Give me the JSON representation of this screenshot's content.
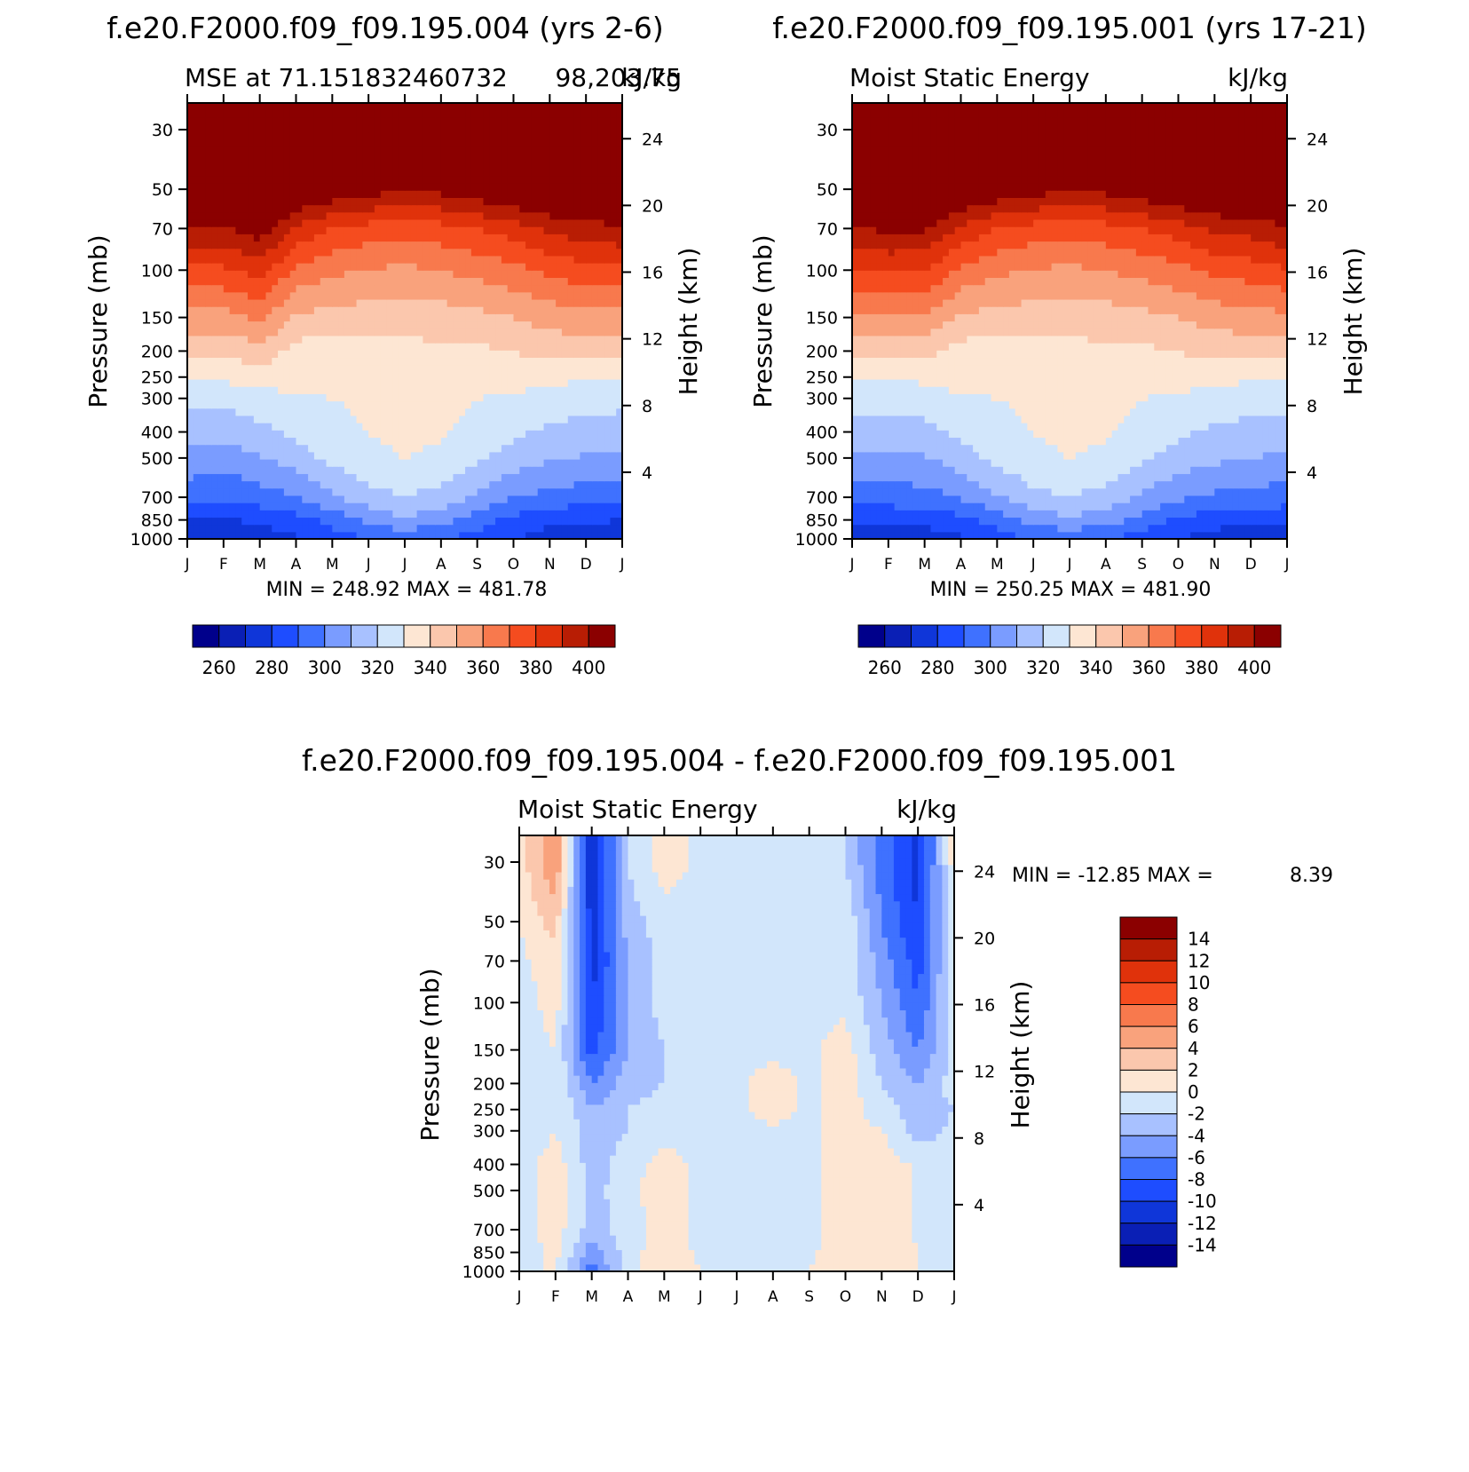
{
  "chart_data": [
    {
      "type": "heatmap",
      "id": "panel-a",
      "title": "f.e20.F2000.f09_f09.195.004 (yrs 2-6)",
      "subtitle_left": "MSE at 71.151832460732",
      "subtitle_right": "98,203.75",
      "units": "kJ/kg",
      "ylabel": "Pressure (mb)",
      "y2label": "Height (km)",
      "months": [
        "J",
        "F",
        "M",
        "A",
        "M",
        "J",
        "J",
        "A",
        "S",
        "O",
        "N",
        "D",
        "J"
      ],
      "pressure_ticks": [
        "30",
        "50",
        "70",
        "100",
        "150",
        "200",
        "250",
        "300",
        "400",
        "500",
        "700",
        "850",
        "1000"
      ],
      "height_ticks": [
        "24",
        "20",
        "16",
        "12",
        "8",
        "4"
      ],
      "stats": "MIN = 248.92  MAX = 481.78",
      "colorbar_labels": [
        "260",
        "280",
        "300",
        "320",
        "340",
        "360",
        "380",
        "400"
      ],
      "contour_levels": [
        250,
        260,
        270,
        280,
        290,
        300,
        310,
        320,
        330,
        340,
        350,
        360,
        370,
        380,
        390,
        400
      ],
      "contour_bands": {
        "levels": [
          1000,
          850,
          700,
          500,
          400,
          300,
          250,
          200,
          150,
          100,
          70,
          50
        ],
        "note": "approximate MSE (kJ/kg) by month (J..J) and pressure level",
        "values": [
          [
            262,
            262,
            264,
            268,
            275,
            280,
            282,
            280,
            275,
            270,
            265,
            263,
            262
          ],
          [
            270,
            268,
            272,
            276,
            283,
            292,
            298,
            294,
            285,
            277,
            272,
            271,
            270
          ],
          [
            283,
            281,
            285,
            290,
            298,
            306,
            310,
            306,
            298,
            290,
            287,
            284,
            283
          ],
          [
            297,
            295,
            299,
            305,
            313,
            318,
            320,
            318,
            312,
            305,
            301,
            299,
            297
          ],
          [
            305,
            303,
            307,
            312,
            317,
            320,
            322,
            321,
            317,
            312,
            308,
            306,
            305
          ],
          [
            313,
            313,
            316,
            318,
            320,
            322,
            324,
            323,
            320,
            318,
            316,
            314,
            313
          ],
          [
            320,
            322,
            324,
            325,
            327,
            328,
            329,
            328,
            327,
            325,
            323,
            321,
            320
          ],
          [
            332,
            332,
            336,
            326,
            325,
            326,
            327,
            328,
            328,
            330,
            333,
            335,
            332
          ],
          [
            346,
            346,
            352,
            338,
            336,
            335,
            334,
            335,
            337,
            340,
            344,
            347,
            346
          ],
          [
            368,
            368,
            374,
            358,
            352,
            349,
            348,
            350,
            353,
            357,
            362,
            366,
            368
          ],
          [
            388,
            388,
            396,
            378,
            370,
            366,
            364,
            366,
            370,
            375,
            382,
            386,
            388
          ],
          [
            405,
            402,
            412,
            404,
            398,
            394,
            392,
            393,
            398,
            402,
            406,
            410,
            405
          ]
        ]
      }
    },
    {
      "type": "heatmap",
      "id": "panel-b",
      "title": "f.e20.F2000.f09_f09.195.001 (yrs 17-21)",
      "subtitle_left": "Moist Static Energy",
      "subtitle_right": "kJ/kg",
      "units": "kJ/kg",
      "ylabel": "Pressure (mb)",
      "y2label": "Height (km)",
      "months": [
        "J",
        "F",
        "M",
        "A",
        "M",
        "J",
        "J",
        "A",
        "S",
        "O",
        "N",
        "D",
        "J"
      ],
      "pressure_ticks": [
        "30",
        "50",
        "70",
        "100",
        "150",
        "200",
        "250",
        "300",
        "400",
        "500",
        "700",
        "850",
        "1000"
      ],
      "height_ticks": [
        "24",
        "20",
        "16",
        "12",
        "8",
        "4"
      ],
      "stats": "MIN = 250.25  MAX = 481.90",
      "colorbar_labels": [
        "260",
        "280",
        "300",
        "320",
        "340",
        "360",
        "380",
        "400"
      ],
      "contour_levels": [
        250,
        260,
        270,
        280,
        290,
        300,
        310,
        320,
        330,
        340,
        350,
        360,
        370,
        380,
        390,
        400
      ],
      "contour_bands": {
        "levels": [
          1000,
          850,
          700,
          500,
          400,
          300,
          250,
          200,
          150,
          100,
          70,
          50
        ],
        "note": "approximate MSE (kJ/kg) by month (J..J) and pressure level",
        "values": [
          [
            262,
            263,
            264,
            268,
            275,
            280,
            282,
            280,
            275,
            270,
            266,
            263,
            262
          ],
          [
            272,
            272,
            273,
            277,
            284,
            293,
            298,
            294,
            286,
            278,
            274,
            272,
            272
          ],
          [
            285,
            285,
            286,
            291,
            299,
            307,
            310,
            306,
            298,
            292,
            288,
            286,
            285
          ],
          [
            298,
            298,
            299,
            305,
            313,
            318,
            320,
            318,
            312,
            305,
            302,
            300,
            298
          ],
          [
            306,
            306,
            307,
            312,
            317,
            320,
            322,
            321,
            317,
            312,
            308,
            306,
            306
          ],
          [
            314,
            314,
            315,
            318,
            320,
            322,
            324,
            323,
            320,
            318,
            316,
            315,
            314
          ],
          [
            320,
            321,
            322,
            325,
            327,
            328,
            329,
            328,
            327,
            325,
            323,
            321,
            320
          ],
          [
            333,
            334,
            334,
            326,
            325,
            326,
            327,
            328,
            328,
            330,
            333,
            334,
            333
          ],
          [
            347,
            348,
            348,
            338,
            336,
            335,
            334,
            335,
            337,
            340,
            344,
            346,
            347
          ],
          [
            369,
            371,
            370,
            358,
            352,
            349,
            348,
            350,
            353,
            357,
            362,
            365,
            369
          ],
          [
            389,
            392,
            391,
            378,
            370,
            366,
            364,
            366,
            370,
            375,
            382,
            384,
            389
          ],
          [
            407,
            410,
            408,
            404,
            398,
            394,
            392,
            393,
            398,
            402,
            406,
            404,
            407
          ]
        ]
      }
    },
    {
      "type": "heatmap",
      "id": "panel-c",
      "title": "f.e20.F2000.f09_f09.195.004 - f.e20.F2000.f09_f09.195.001",
      "subtitle_left": "Moist Static Energy",
      "subtitle_right": "kJ/kg",
      "units": "kJ/kg",
      "ylabel": "Pressure (mb)",
      "y2label": "Height (km)",
      "months": [
        "J",
        "F",
        "M",
        "A",
        "M",
        "J",
        "J",
        "A",
        "S",
        "O",
        "N",
        "D",
        "J"
      ],
      "pressure_ticks": [
        "30",
        "50",
        "70",
        "100",
        "150",
        "200",
        "250",
        "300",
        "400",
        "500",
        "700",
        "850",
        "1000"
      ],
      "height_ticks": [
        "24",
        "20",
        "16",
        "12",
        "8",
        "4"
      ],
      "stats_label": "MIN = -12.85 MAX =",
      "stats_value": "8.39",
      "colorbar_labels": [
        "14",
        "12",
        "10",
        "8",
        "6",
        "4",
        "2",
        "0",
        "-2",
        "-4",
        "-6",
        "-8",
        "-10",
        "-12",
        "-14"
      ],
      "contour_levels": [
        -14,
        -12,
        -10,
        -8,
        -6,
        -4,
        -2,
        0,
        2,
        4,
        6,
        8,
        10,
        12,
        14
      ],
      "contour_bands": {
        "levels": [
          1000,
          850,
          700,
          500,
          400,
          300,
          250,
          200,
          150,
          100,
          70,
          50,
          30
        ],
        "note": "approximate difference (kJ/kg) by month (J..J) and pressure level",
        "values": [
          [
            0,
            0,
            -7,
            -1,
            2,
            0,
            0,
            0,
            0,
            1,
            1,
            0,
            -1
          ],
          [
            -1,
            0.5,
            -5,
            -1,
            1.5,
            -0.5,
            -0.5,
            -0.5,
            -0.5,
            1.5,
            1.5,
            0,
            -1
          ],
          [
            -1,
            1,
            -3,
            -1,
            1,
            -0.5,
            -0.5,
            -0.5,
            -0.5,
            1,
            2,
            -0.5,
            -1
          ],
          [
            -1,
            1,
            -3,
            -0.5,
            1,
            -0.5,
            -0.5,
            -0.5,
            -0.5,
            1,
            2,
            -0.5,
            -1
          ],
          [
            -1,
            1,
            -3,
            -1,
            1,
            -0.5,
            -0.5,
            -0.5,
            -0.5,
            1,
            1.5,
            -0.5,
            -1
          ],
          [
            -1.5,
            0,
            -3,
            -2,
            -1,
            -0.5,
            -0.5,
            -0.5,
            -0.5,
            1,
            0,
            -3,
            -1.5
          ],
          [
            -2,
            0,
            -4,
            -2,
            -1,
            -0.5,
            -0.5,
            1,
            -0.5,
            1,
            -1,
            -3,
            -2
          ],
          [
            -1,
            0,
            -6,
            -3,
            -2,
            -0.5,
            -0.5,
            1,
            -0.5,
            1,
            -2,
            -4,
            -1
          ],
          [
            -1.5,
            0,
            -9,
            -4,
            -2,
            -0.5,
            -0.5,
            -0.5,
            -0.5,
            1,
            -3,
            -6,
            -1.5
          ],
          [
            -1,
            1,
            -10,
            -4,
            -1,
            -0.5,
            -0.5,
            -0.5,
            -0.5,
            -0.5,
            -4,
            -8,
            -1
          ],
          [
            -0.5,
            1,
            -11,
            -4,
            -1,
            -0.5,
            -0.5,
            -0.5,
            -0.5,
            -0.5,
            -5,
            -9,
            -0.5
          ],
          [
            0,
            3,
            -11,
            -3,
            -1,
            -0.5,
            -0.5,
            -0.5,
            -0.5,
            -0.5,
            -6,
            -10,
            0
          ],
          [
            1,
            6,
            -12,
            -2,
            1,
            -0.5,
            -0.5,
            -0.5,
            -0.5,
            -2,
            -7,
            -11,
            1
          ]
        ]
      }
    }
  ]
}
